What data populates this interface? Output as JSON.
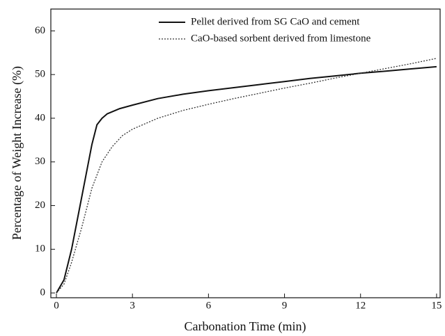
{
  "chart_data": {
    "type": "line",
    "x_label": "Carbonation Time (min)",
    "y_label": "Percentage of Weight Increase (%)",
    "xlim": [
      -0.22,
      15.14
    ],
    "ylim": [
      -1.1,
      65
    ],
    "xticks": [
      0,
      3,
      6,
      9,
      12,
      15
    ],
    "yticks": [
      0,
      10,
      20,
      30,
      40,
      50,
      60
    ],
    "legend": "upper right",
    "series": [
      {
        "name": "Pellet derived from SG CaO and cement",
        "color": "#111111",
        "style": "solid",
        "x": [
          0,
          0.3,
          0.6,
          1,
          1.4,
          1.6,
          1.8,
          2,
          2.5,
          3,
          4,
          5,
          6,
          7,
          8,
          9,
          10,
          11,
          12,
          13,
          14,
          15
        ],
        "values": [
          0,
          3,
          10,
          22,
          34,
          38.5,
          40,
          41,
          42.2,
          43,
          44.5,
          45.5,
          46.3,
          47,
          47.7,
          48.4,
          49.1,
          49.7,
          50.3,
          50.8,
          51.3,
          51.8
        ]
      },
      {
        "name": "CaO-based sorbent derived from limestone",
        "color": "#333333",
        "style": "dotted",
        "x": [
          0,
          0.3,
          0.6,
          1,
          1.4,
          1.8,
          2.2,
          2.6,
          3,
          4,
          5,
          6,
          7,
          8,
          9,
          10,
          11,
          12,
          13,
          14,
          15
        ],
        "values": [
          0,
          2,
          7,
          15,
          24,
          30,
          33.5,
          36,
          37.5,
          40,
          41.8,
          43.2,
          44.5,
          45.7,
          46.9,
          48,
          49.2,
          50.3,
          51.4,
          52.5,
          53.7
        ]
      }
    ]
  }
}
